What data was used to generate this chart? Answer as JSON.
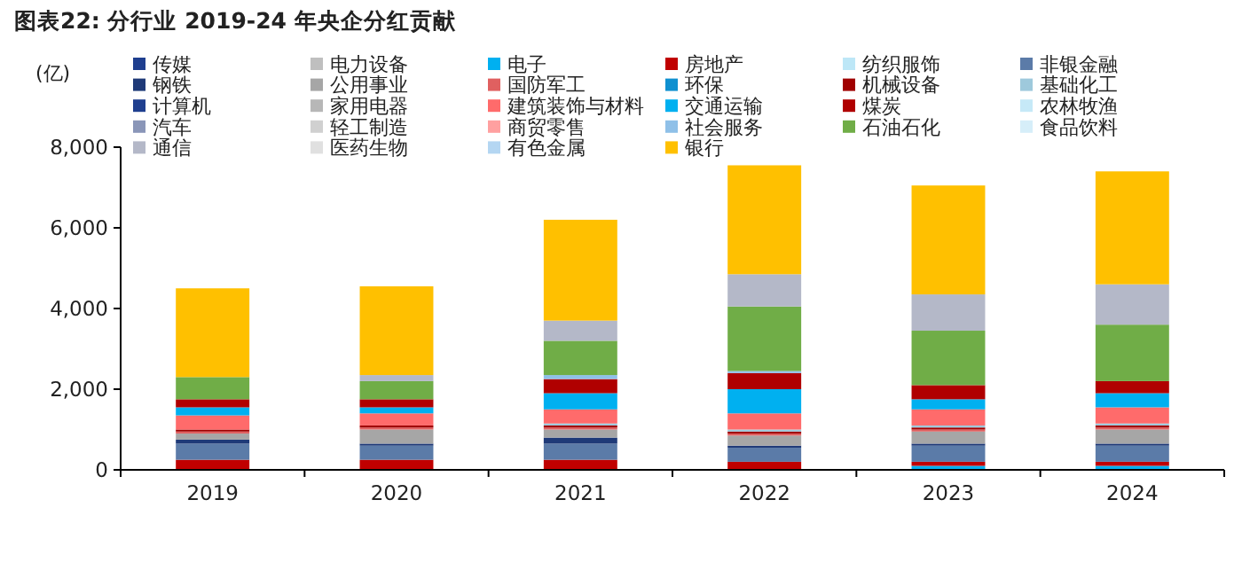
{
  "chart_data": {
    "type": "bar",
    "stacked": true,
    "title": "图表22:  分行业 2019-24 年央企分红贡献",
    "ylabel": "(亿)",
    "categories": [
      "2019",
      "2020",
      "2021",
      "2022",
      "2023",
      "2024"
    ],
    "ylim": [
      0,
      8000
    ],
    "yticks": [
      0,
      {
        "value": 2000,
        "label": "2,000"
      },
      {
        "value": 4000,
        "label": "4,000"
      },
      {
        "value": 6000,
        "label": "6,000"
      },
      {
        "value": 8000,
        "label": "8,000"
      }
    ],
    "grid": false,
    "legend": "top",
    "series": [
      {
        "name": "传媒",
        "color": "#1f3f8f",
        "values": [
          0,
          0,
          0,
          0,
          0,
          0
        ]
      },
      {
        "name": "电力设备",
        "color": "#bfbfbf",
        "values": [
          0,
          0,
          0,
          0,
          0,
          0
        ]
      },
      {
        "name": "电子",
        "color": "#00b0f0",
        "values": [
          0,
          0,
          0,
          0,
          100,
          100
        ]
      },
      {
        "name": "房地产",
        "color": "#c00000",
        "values": [
          250,
          250,
          250,
          200,
          100,
          100
        ]
      },
      {
        "name": "纺织服饰",
        "color": "#bde7f7",
        "values": [
          0,
          0,
          0,
          0,
          0,
          0
        ]
      },
      {
        "name": "非银金融",
        "color": "#5b7ba8",
        "values": [
          400,
          350,
          400,
          350,
          400,
          400
        ]
      },
      {
        "name": "钢铁",
        "color": "#1f3a78",
        "values": [
          100,
          50,
          150,
          50,
          50,
          50
        ]
      },
      {
        "name": "公用事业",
        "color": "#a6a6a6",
        "values": [
          150,
          350,
          200,
          250,
          300,
          350
        ]
      },
      {
        "name": "国防军工",
        "color": "#e06060",
        "values": [
          50,
          50,
          50,
          50,
          50,
          50
        ]
      },
      {
        "name": "环保",
        "color": "#0f90d0",
        "values": [
          0,
          0,
          0,
          0,
          0,
          0
        ]
      },
      {
        "name": "机械设备",
        "color": "#a00000",
        "values": [
          50,
          50,
          50,
          50,
          50,
          50
        ]
      },
      {
        "name": "基础化工",
        "color": "#9ec9dc",
        "values": [
          0,
          0,
          50,
          50,
          50,
          50
        ]
      },
      {
        "name": "计算机",
        "color": "#1f3f8f",
        "values": [
          0,
          0,
          0,
          0,
          0,
          0
        ]
      },
      {
        "name": "家用电器",
        "color": "#b7b7b7",
        "values": [
          0,
          0,
          0,
          0,
          0,
          0
        ]
      },
      {
        "name": "建筑装饰与材料",
        "color": "#ff6b6b",
        "values": [
          350,
          300,
          350,
          400,
          400,
          400
        ]
      },
      {
        "name": "交通运输",
        "color": "#00b0f0",
        "values": [
          200,
          150,
          400,
          600,
          250,
          350
        ]
      },
      {
        "name": "煤炭",
        "color": "#b00000",
        "values": [
          200,
          200,
          350,
          400,
          350,
          300
        ]
      },
      {
        "name": "农林牧渔",
        "color": "#c6e9f7",
        "values": [
          0,
          0,
          0,
          0,
          0,
          0
        ]
      },
      {
        "name": "汽车",
        "color": "#8a96b8",
        "values": [
          0,
          0,
          0,
          0,
          0,
          0
        ]
      },
      {
        "name": "轻工制造",
        "color": "#d0d0d0",
        "values": [
          0,
          0,
          0,
          0,
          0,
          0
        ]
      },
      {
        "name": "商贸零售",
        "color": "#ffa0a0",
        "values": [
          0,
          0,
          0,
          0,
          0,
          0
        ]
      },
      {
        "name": "社会服务",
        "color": "#8fc0e8",
        "values": [
          0,
          0,
          100,
          50,
          0,
          0
        ]
      },
      {
        "name": "石油石化",
        "color": "#70ad47",
        "values": [
          550,
          450,
          850,
          1600,
          1350,
          1400
        ]
      },
      {
        "name": "食品饮料",
        "color": "#d6eef9",
        "values": [
          0,
          0,
          0,
          0,
          0,
          0
        ]
      },
      {
        "name": "通信",
        "color": "#b4b8c8",
        "values": [
          0,
          150,
          500,
          800,
          900,
          1000
        ]
      },
      {
        "name": "医药生物",
        "color": "#e0e0e0",
        "values": [
          0,
          0,
          0,
          0,
          0,
          0
        ]
      },
      {
        "name": "有色金属",
        "color": "#b4d6f2",
        "values": [
          0,
          0,
          0,
          0,
          0,
          0
        ]
      },
      {
        "name": "银行",
        "color": "#ffc000",
        "values": [
          2200,
          2200,
          2500,
          2700,
          2700,
          2800
        ]
      }
    ]
  }
}
